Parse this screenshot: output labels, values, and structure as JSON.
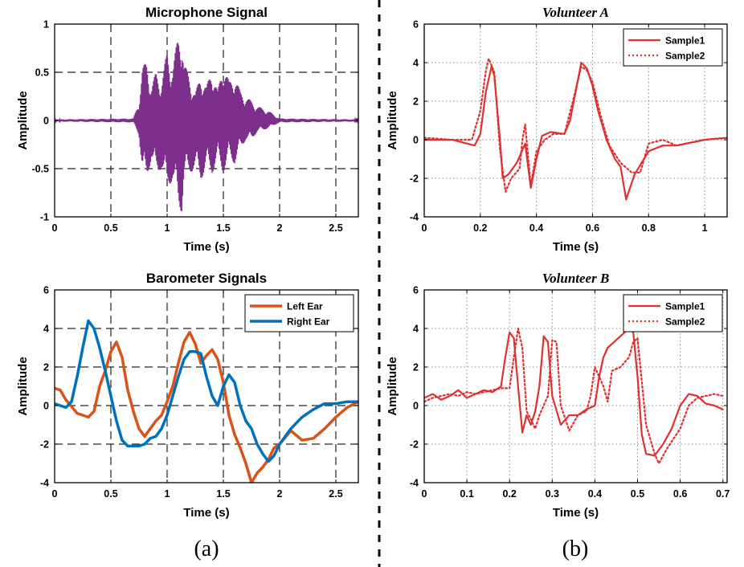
{
  "panel_labels": {
    "a": "(a)",
    "b": "(b)"
  },
  "chart_data": [
    {
      "id": "mic",
      "type": "line",
      "title": "Microphone Signal",
      "title_style": "bold",
      "xlabel": "Time (s)",
      "ylabel": "Amplitude",
      "xlim": [
        0,
        2.7
      ],
      "ylim": [
        -1,
        1
      ],
      "xticks": [
        0,
        0.5,
        1,
        1.5,
        2,
        2.5
      ],
      "xtick_labels": [
        "0",
        "0.5",
        "1",
        "1.5",
        "2",
        "2.5"
      ],
      "yticks": [
        -1,
        -0.5,
        0,
        0.5,
        1
      ],
      "ytick_labels": [
        "-1",
        "-0.5",
        "0",
        "0.5",
        "1"
      ],
      "grid": "dashed",
      "legend": null,
      "series": [
        {
          "style": "envelope",
          "color": "#7E2F8E",
          "x": [
            0,
            0.7,
            0.75,
            0.78,
            0.82,
            0.86,
            0.9,
            0.95,
            1.0,
            1.05,
            1.1,
            1.13,
            1.15,
            1.2,
            1.25,
            1.3,
            1.35,
            1.4,
            1.45,
            1.5,
            1.55,
            1.6,
            1.65,
            1.7,
            1.75,
            1.8,
            1.9,
            2.0,
            2.7
          ],
          "upper": [
            0.01,
            0.02,
            0.2,
            0.55,
            0.62,
            0.35,
            0.5,
            0.4,
            0.72,
            0.55,
            0.9,
            1.0,
            0.6,
            0.45,
            0.28,
            0.48,
            0.35,
            0.55,
            0.3,
            0.62,
            0.4,
            0.48,
            0.3,
            0.25,
            0.2,
            0.15,
            0.1,
            0.02,
            0.01
          ],
          "lower": [
            -0.01,
            -0.02,
            -0.15,
            -0.55,
            -0.6,
            -0.4,
            -0.55,
            -0.5,
            -0.7,
            -0.62,
            -0.9,
            -0.95,
            -0.6,
            -0.55,
            -0.5,
            -0.62,
            -0.48,
            -0.55,
            -0.4,
            -0.55,
            -0.38,
            -0.45,
            -0.3,
            -0.2,
            -0.2,
            -0.12,
            -0.08,
            -0.02,
            -0.01
          ]
        }
      ]
    },
    {
      "id": "baro",
      "type": "line",
      "title": "Barometer Signals",
      "title_style": "bold",
      "xlabel": "Time (s)",
      "ylabel": "Amplitude",
      "xlim": [
        0,
        2.7
      ],
      "ylim": [
        -4,
        6
      ],
      "xticks": [
        0,
        0.5,
        1,
        1.5,
        2,
        2.5
      ],
      "xtick_labels": [
        "0",
        "0.5",
        "1",
        "1.5",
        "2",
        "2.5"
      ],
      "yticks": [
        -4,
        -2,
        0,
        2,
        4,
        6
      ],
      "ytick_labels": [
        "-4",
        "-2",
        "0",
        "2",
        "4",
        "6"
      ],
      "grid": "dashed",
      "legend": "top-right",
      "series": [
        {
          "name": "Left Ear",
          "color": "#D95319",
          "dash": "solid",
          "x": [
            0,
            0.05,
            0.1,
            0.2,
            0.3,
            0.35,
            0.4,
            0.45,
            0.5,
            0.55,
            0.6,
            0.65,
            0.7,
            0.75,
            0.8,
            0.85,
            0.9,
            0.95,
            1.0,
            1.05,
            1.1,
            1.15,
            1.2,
            1.25,
            1.3,
            1.35,
            1.4,
            1.45,
            1.5,
            1.55,
            1.6,
            1.65,
            1.7,
            1.75,
            1.8,
            1.85,
            1.9,
            1.95,
            2.0,
            2.1,
            2.2,
            2.3,
            2.4,
            2.5,
            2.6,
            2.7
          ],
          "y": [
            0.9,
            0.8,
            0.3,
            -0.4,
            -0.6,
            -0.3,
            1.0,
            1.8,
            2.8,
            3.3,
            2.5,
            0.8,
            -0.3,
            -1.2,
            -1.6,
            -1.2,
            -0.8,
            -0.5,
            0.2,
            1.0,
            2.2,
            3.3,
            3.8,
            3.2,
            2.2,
            2.6,
            2.9,
            2.4,
            1.2,
            -0.5,
            -1.5,
            -2.2,
            -3.0,
            -4.0,
            -3.5,
            -3.2,
            -2.8,
            -2.2,
            -2.0,
            -1.3,
            -1.8,
            -1.7,
            -1.2,
            -0.6,
            -0.1,
            0.2
          ]
        },
        {
          "name": "Right Ear",
          "color": "#0072BD",
          "dash": "solid",
          "x": [
            0,
            0.05,
            0.1,
            0.15,
            0.2,
            0.25,
            0.3,
            0.35,
            0.4,
            0.45,
            0.5,
            0.55,
            0.6,
            0.65,
            0.7,
            0.75,
            0.8,
            0.85,
            0.9,
            0.95,
            1.0,
            1.05,
            1.1,
            1.15,
            1.2,
            1.25,
            1.3,
            1.35,
            1.4,
            1.45,
            1.5,
            1.55,
            1.6,
            1.65,
            1.7,
            1.75,
            1.8,
            1.85,
            1.9,
            1.95,
            2.0,
            2.1,
            2.2,
            2.3,
            2.4,
            2.5,
            2.6,
            2.7
          ],
          "y": [
            0.1,
            0.0,
            -0.1,
            0.2,
            1.5,
            3.0,
            4.4,
            4.0,
            3.0,
            1.8,
            0.5,
            -0.8,
            -1.8,
            -2.1,
            -2.1,
            -2.1,
            -2.0,
            -1.7,
            -1.6,
            -1.2,
            -0.5,
            0.5,
            1.5,
            2.4,
            2.8,
            2.8,
            2.7,
            1.5,
            0.5,
            0.0,
            1.0,
            1.6,
            1.2,
            0.0,
            -0.8,
            -1.2,
            -2.0,
            -2.5,
            -2.9,
            -2.6,
            -2.0,
            -1.2,
            -0.6,
            -0.2,
            0.1,
            0.1,
            0.2,
            0.2
          ]
        }
      ]
    },
    {
      "id": "volA",
      "type": "line",
      "title": "Volunteer A",
      "title_style": "italic",
      "xlabel": "Time (s)",
      "ylabel": "Amplitude",
      "xlim": [
        0,
        1.08
      ],
      "ylim": [
        -4,
        6
      ],
      "xticks": [
        0,
        0.2,
        0.4,
        0.6,
        0.8,
        1
      ],
      "xtick_labels": [
        "0",
        "0.2",
        "0.4",
        "0.6",
        "0.8",
        "1"
      ],
      "yticks": [
        -4,
        -2,
        0,
        2,
        4,
        6
      ],
      "ytick_labels": [
        "-4",
        "-2",
        "0",
        "2",
        "4",
        "6"
      ],
      "grid": "dotted",
      "legend": "top-right",
      "series": [
        {
          "name": "Sample1",
          "color": "#E03030",
          "dash": "solid",
          "x": [
            0,
            0.1,
            0.18,
            0.2,
            0.22,
            0.24,
            0.25,
            0.27,
            0.28,
            0.3,
            0.33,
            0.36,
            0.38,
            0.4,
            0.42,
            0.45,
            0.5,
            0.52,
            0.54,
            0.56,
            0.58,
            0.6,
            0.62,
            0.65,
            0.68,
            0.7,
            0.72,
            0.75,
            0.8,
            0.85,
            0.9,
            1.0,
            1.08
          ],
          "y": [
            0.0,
            0.0,
            -0.3,
            0.3,
            2.5,
            3.8,
            3.3,
            0.0,
            -2.0,
            -1.8,
            -1.2,
            -0.2,
            -2.5,
            -1.0,
            0.2,
            0.4,
            0.3,
            1.0,
            2.5,
            4.0,
            3.7,
            2.8,
            1.5,
            0.0,
            -1.0,
            -1.4,
            -3.1,
            -1.8,
            -0.6,
            -0.3,
            -0.3,
            0.0,
            0.1
          ]
        },
        {
          "name": "Sample2",
          "color": "#E03030",
          "dash": "dotted",
          "x": [
            0,
            0.1,
            0.17,
            0.2,
            0.22,
            0.23,
            0.25,
            0.27,
            0.29,
            0.31,
            0.34,
            0.35,
            0.36,
            0.38,
            0.4,
            0.43,
            0.46,
            0.5,
            0.53,
            0.56,
            0.58,
            0.6,
            0.63,
            0.66,
            0.7,
            0.74,
            0.77,
            0.8,
            0.85,
            0.9,
            1.0,
            1.08
          ],
          "y": [
            0.1,
            0.0,
            0.0,
            1.5,
            3.6,
            4.2,
            3.5,
            -0.5,
            -2.7,
            -2.0,
            -1.5,
            0.0,
            0.8,
            -2.4,
            -0.6,
            0.0,
            0.3,
            0.3,
            2.0,
            3.8,
            3.6,
            3.0,
            1.2,
            -0.3,
            -1.2,
            -1.7,
            -1.7,
            -0.2,
            0.0,
            -0.3,
            0.0,
            0.1
          ]
        }
      ]
    },
    {
      "id": "volB",
      "type": "line",
      "title": "Volunteer B",
      "title_style": "italic",
      "xlabel": "Time (s)",
      "ylabel": "Amplitude",
      "xlim": [
        0,
        0.71
      ],
      "ylim": [
        -4,
        6
      ],
      "xticks": [
        0,
        0.1,
        0.2,
        0.3,
        0.4,
        0.5,
        0.6,
        0.7
      ],
      "xtick_labels": [
        "0",
        "0.1",
        "0.2",
        "0.3",
        "0.4",
        "0.5",
        "0.6",
        "0.7"
      ],
      "yticks": [
        -4,
        -2,
        0,
        2,
        4,
        6
      ],
      "ytick_labels": [
        "-4",
        "-2",
        "0",
        "2",
        "4",
        "6"
      ],
      "grid": "dotted",
      "legend": "top-right",
      "series": [
        {
          "name": "Sample1",
          "color": "#E03030",
          "dash": "solid",
          "x": [
            0,
            0.02,
            0.04,
            0.06,
            0.08,
            0.1,
            0.12,
            0.14,
            0.16,
            0.18,
            0.19,
            0.2,
            0.21,
            0.22,
            0.23,
            0.24,
            0.25,
            0.26,
            0.27,
            0.28,
            0.29,
            0.3,
            0.32,
            0.34,
            0.36,
            0.38,
            0.4,
            0.41,
            0.42,
            0.43,
            0.44,
            0.46,
            0.48,
            0.49,
            0.5,
            0.51,
            0.52,
            0.54,
            0.56,
            0.58,
            0.6,
            0.62,
            0.64,
            0.66,
            0.68,
            0.7
          ],
          "y": [
            0.4,
            0.6,
            0.3,
            0.5,
            0.8,
            0.4,
            0.6,
            0.8,
            0.7,
            1.0,
            2.5,
            3.8,
            3.5,
            1.0,
            -1.4,
            -0.5,
            -1.0,
            -0.3,
            1.0,
            3.6,
            3.3,
            0.5,
            -1.0,
            -0.5,
            -0.5,
            -0.2,
            0.0,
            1.5,
            2.5,
            3.0,
            3.2,
            3.6,
            4.0,
            3.8,
            1.5,
            -1.5,
            -2.5,
            -2.6,
            -2.0,
            -1.2,
            0.0,
            0.6,
            0.5,
            0.1,
            0.0,
            -0.2
          ]
        },
        {
          "name": "Sample2",
          "color": "#E03030",
          "dash": "dotted",
          "x": [
            0,
            0.02,
            0.04,
            0.06,
            0.08,
            0.1,
            0.12,
            0.14,
            0.16,
            0.18,
            0.2,
            0.21,
            0.22,
            0.23,
            0.24,
            0.25,
            0.26,
            0.27,
            0.28,
            0.29,
            0.3,
            0.31,
            0.32,
            0.34,
            0.36,
            0.38,
            0.39,
            0.4,
            0.42,
            0.43,
            0.44,
            0.46,
            0.48,
            0.49,
            0.5,
            0.52,
            0.54,
            0.55,
            0.57,
            0.6,
            0.62,
            0.64,
            0.66,
            0.68,
            0.7
          ],
          "y": [
            0.2,
            0.4,
            0.5,
            0.6,
            0.5,
            0.7,
            0.6,
            0.7,
            0.8,
            0.9,
            0.9,
            2.5,
            4.0,
            3.0,
            -0.3,
            -0.7,
            -1.2,
            -0.5,
            0.0,
            0.5,
            3.4,
            3.3,
            0.0,
            -1.3,
            -0.5,
            -0.3,
            0.5,
            2.0,
            1.0,
            0.2,
            1.8,
            2.0,
            2.5,
            3.3,
            3.5,
            -1.0,
            -2.5,
            -3.0,
            -2.2,
            -1.2,
            0.0,
            0.4,
            0.5,
            0.6,
            0.5
          ]
        }
      ]
    }
  ]
}
